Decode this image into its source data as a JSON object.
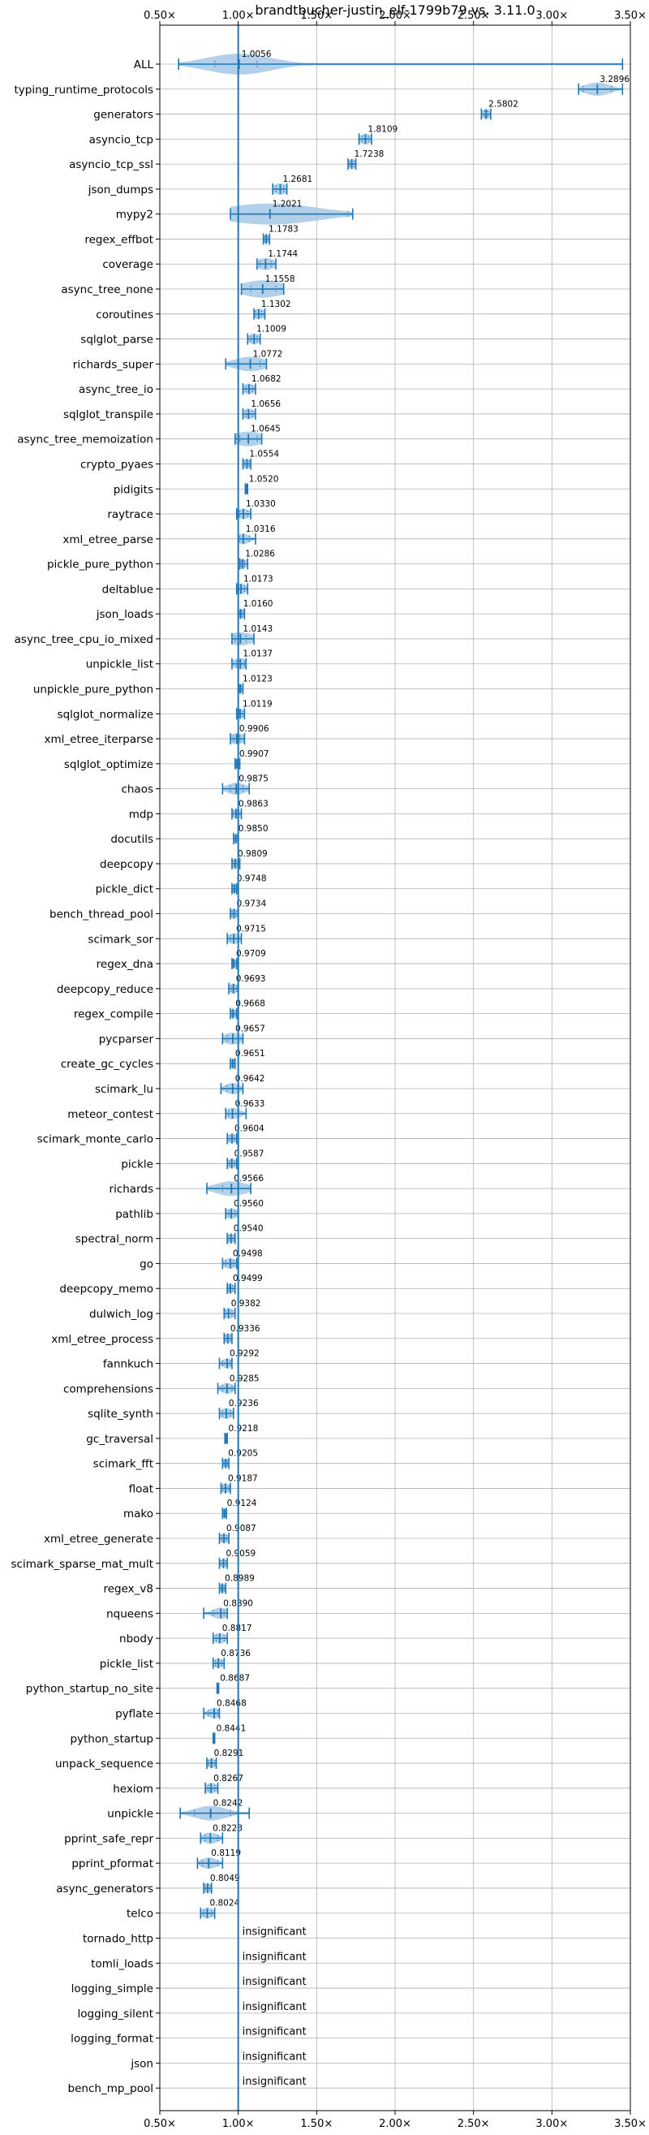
{
  "chart_data": {
    "type": "violin",
    "title": "brandtbucher-justin_elf-1799b79 vs. 3.11.0",
    "xlabel": "",
    "ylabel": "",
    "xlim": [
      0.5,
      3.5
    ],
    "x_ticks": [
      0.5,
      1.0,
      1.5,
      2.0,
      2.5,
      3.0,
      3.5
    ],
    "x_tick_labels": [
      "0.50x",
      "1.00x",
      "1.50x",
      "2.00x",
      "2.50x",
      "3.00x",
      "3.50x"
    ],
    "reference_line": 1.0,
    "grid": true,
    "colors": {
      "accent": "#1f77b4",
      "violin": "#a6c8e6",
      "grid": "#b0b0b0"
    },
    "benchmarks": [
      {
        "name": "ALL",
        "median_label": "1.0056",
        "median": 1.0056,
        "min": 0.62,
        "max": 3.45,
        "q1": 0.85,
        "q3": 1.12,
        "spread": 0.2
      },
      {
        "name": "typing_runtime_protocols",
        "median_label": "3.2896",
        "median": 3.2896,
        "min": 3.17,
        "max": 3.45,
        "q1": 3.2,
        "q3": 3.38,
        "spread": 0.08
      },
      {
        "name": "generators",
        "median_label": "2.5802",
        "median": 2.5802,
        "min": 2.55,
        "max": 2.61,
        "q1": 2.57,
        "q3": 2.59,
        "spread": 0.03
      },
      {
        "name": "asyncio_tcp",
        "median_label": "1.8109",
        "median": 1.8109,
        "min": 1.77,
        "max": 1.85,
        "q1": 1.79,
        "q3": 1.83,
        "spread": 0.04
      },
      {
        "name": "asyncio_tcp_ssl",
        "median_label": "1.7238",
        "median": 1.7238,
        "min": 1.7,
        "max": 1.75,
        "q1": 1.71,
        "q3": 1.74,
        "spread": 0.03
      },
      {
        "name": "json_dumps",
        "median_label": "1.2681",
        "median": 1.2681,
        "min": 1.22,
        "max": 1.31,
        "q1": 1.24,
        "q3": 1.29,
        "spread": 0.05
      },
      {
        "name": "mypy2",
        "median_label": "1.2021",
        "median": 1.2021,
        "min": 0.95,
        "max": 1.73,
        "q1": 1.0,
        "q3": 1.7,
        "spread": 0.3
      },
      {
        "name": "regex_effbot",
        "median_label": "1.1783",
        "median": 1.1783,
        "min": 1.16,
        "max": 1.2,
        "q1": 1.17,
        "q3": 1.19,
        "spread": 0.02
      },
      {
        "name": "coverage",
        "median_label": "1.1744",
        "median": 1.1744,
        "min": 1.12,
        "max": 1.24,
        "q1": 1.14,
        "q3": 1.21,
        "spread": 0.06
      },
      {
        "name": "async_tree_none",
        "median_label": "1.1558",
        "median": 1.1558,
        "min": 1.02,
        "max": 1.29,
        "q1": 1.08,
        "q3": 1.24,
        "spread": 0.14
      },
      {
        "name": "coroutines",
        "median_label": "1.1302",
        "median": 1.1302,
        "min": 1.1,
        "max": 1.17,
        "q1": 1.11,
        "q3": 1.15,
        "spread": 0.04
      },
      {
        "name": "sqlglot_parse",
        "median_label": "1.1009",
        "median": 1.1009,
        "min": 1.06,
        "max": 1.14,
        "q1": 1.08,
        "q3": 1.12,
        "spread": 0.04
      },
      {
        "name": "richards_super",
        "median_label": "1.0772",
        "median": 1.0772,
        "min": 0.92,
        "max": 1.18,
        "q1": 1.0,
        "q3": 1.14,
        "spread": 0.1
      },
      {
        "name": "async_tree_io",
        "median_label": "1.0682",
        "median": 1.0682,
        "min": 1.03,
        "max": 1.11,
        "q1": 1.05,
        "q3": 1.09,
        "spread": 0.04
      },
      {
        "name": "sqlglot_transpile",
        "median_label": "1.0656",
        "median": 1.0656,
        "min": 1.03,
        "max": 1.11,
        "q1": 1.05,
        "q3": 1.09,
        "spread": 0.04
      },
      {
        "name": "async_tree_memoization",
        "median_label": "1.0645",
        "median": 1.0645,
        "min": 0.98,
        "max": 1.15,
        "q1": 1.01,
        "q3": 1.12,
        "spread": 0.1
      },
      {
        "name": "crypto_pyaes",
        "median_label": "1.0554",
        "median": 1.0554,
        "min": 1.03,
        "max": 1.08,
        "q1": 1.04,
        "q3": 1.07,
        "spread": 0.03
      },
      {
        "name": "pidigits",
        "median_label": "1.0520",
        "median": 1.052,
        "min": 1.045,
        "max": 1.06,
        "q1": 1.05,
        "q3": 1.055,
        "spread": 0.008
      },
      {
        "name": "raytrace",
        "median_label": "1.0330",
        "median": 1.033,
        "min": 0.99,
        "max": 1.08,
        "q1": 1.01,
        "q3": 1.06,
        "spread": 0.04
      },
      {
        "name": "xml_etree_parse",
        "median_label": "1.0316",
        "median": 1.0316,
        "min": 1.0,
        "max": 1.11,
        "q1": 1.01,
        "q3": 1.07,
        "spread": 0.04
      },
      {
        "name": "pickle_pure_python",
        "median_label": "1.0286",
        "median": 1.0286,
        "min": 1.01,
        "max": 1.06,
        "q1": 1.02,
        "q3": 1.04,
        "spread": 0.03
      },
      {
        "name": "deltablue",
        "median_label": "1.0173",
        "median": 1.0173,
        "min": 0.99,
        "max": 1.06,
        "q1": 1.0,
        "q3": 1.04,
        "spread": 0.04
      },
      {
        "name": "json_loads",
        "median_label": "1.0160",
        "median": 1.016,
        "min": 1.0,
        "max": 1.04,
        "q1": 1.01,
        "q3": 1.03,
        "spread": 0.03
      },
      {
        "name": "async_tree_cpu_io_mixed",
        "median_label": "1.0143",
        "median": 1.0143,
        "min": 0.96,
        "max": 1.1,
        "q1": 0.98,
        "q3": 1.05,
        "spread": 0.08
      },
      {
        "name": "unpickle_list",
        "median_label": "1.0137",
        "median": 1.0137,
        "min": 0.96,
        "max": 1.05,
        "q1": 0.99,
        "q3": 1.04,
        "spread": 0.05
      },
      {
        "name": "unpickle_pure_python",
        "median_label": "1.0123",
        "median": 1.0123,
        "min": 1.0,
        "max": 1.03,
        "q1": 1.005,
        "q3": 1.02,
        "spread": 0.02
      },
      {
        "name": "sqlglot_normalize",
        "median_label": "1.0119",
        "median": 1.0119,
        "min": 0.99,
        "max": 1.04,
        "q1": 1.0,
        "q3": 1.03,
        "spread": 0.03
      },
      {
        "name": "xml_etree_iterparse",
        "median_label": "0.9906",
        "median": 0.9906,
        "min": 0.95,
        "max": 1.04,
        "q1": 0.97,
        "q3": 1.01,
        "spread": 0.05
      },
      {
        "name": "sqlglot_optimize",
        "median_label": "0.9907",
        "median": 0.9907,
        "min": 0.98,
        "max": 1.01,
        "q1": 0.985,
        "q3": 1.0,
        "spread": 0.02
      },
      {
        "name": "chaos",
        "median_label": "0.9875",
        "median": 0.9875,
        "min": 0.9,
        "max": 1.07,
        "q1": 0.95,
        "q3": 1.03,
        "spread": 0.06
      },
      {
        "name": "mdp",
        "median_label": "0.9863",
        "median": 0.9863,
        "min": 0.96,
        "max": 1.02,
        "q1": 0.97,
        "q3": 1.0,
        "spread": 0.03
      },
      {
        "name": "docutils",
        "median_label": "0.9850",
        "median": 0.985,
        "min": 0.97,
        "max": 1.0,
        "q1": 0.975,
        "q3": 0.995,
        "spread": 0.02
      },
      {
        "name": "deepcopy",
        "median_label": "0.9809",
        "median": 0.9809,
        "min": 0.96,
        "max": 1.01,
        "q1": 0.97,
        "q3": 0.995,
        "spread": 0.03
      },
      {
        "name": "pickle_dict",
        "median_label": "0.9748",
        "median": 0.9748,
        "min": 0.96,
        "max": 0.99,
        "q1": 0.965,
        "q3": 0.985,
        "spread": 0.02
      },
      {
        "name": "bench_thread_pool",
        "median_label": "0.9734",
        "median": 0.9734,
        "min": 0.95,
        "max": 1.0,
        "q1": 0.96,
        "q3": 0.99,
        "spread": 0.03
      },
      {
        "name": "scimark_sor",
        "median_label": "0.9715",
        "median": 0.9715,
        "min": 0.93,
        "max": 1.02,
        "q1": 0.95,
        "q3": 1.0,
        "spread": 0.04
      },
      {
        "name": "regex_dna",
        "median_label": "0.9709",
        "median": 0.9709,
        "min": 0.96,
        "max": 0.99,
        "q1": 0.965,
        "q3": 0.98,
        "spread": 0.02
      },
      {
        "name": "deepcopy_reduce",
        "median_label": "0.9693",
        "median": 0.9693,
        "min": 0.94,
        "max": 1.0,
        "q1": 0.955,
        "q3": 0.99,
        "spread": 0.03
      },
      {
        "name": "regex_compile",
        "median_label": "0.9668",
        "median": 0.9668,
        "min": 0.95,
        "max": 0.99,
        "q1": 0.96,
        "q3": 0.98,
        "spread": 0.02
      },
      {
        "name": "pycparser",
        "median_label": "0.9657",
        "median": 0.9657,
        "min": 0.9,
        "max": 1.03,
        "q1": 0.93,
        "q3": 1.0,
        "spread": 0.06
      },
      {
        "name": "create_gc_cycles",
        "median_label": "0.9651",
        "median": 0.9651,
        "min": 0.95,
        "max": 0.98,
        "q1": 0.955,
        "q3": 0.975,
        "spread": 0.02
      },
      {
        "name": "scimark_lu",
        "median_label": "0.9642",
        "median": 0.9642,
        "min": 0.89,
        "max": 1.03,
        "q1": 0.93,
        "q3": 1.0,
        "spread": 0.05
      },
      {
        "name": "meteor_contest",
        "median_label": "0.9633",
        "median": 0.9633,
        "min": 0.92,
        "max": 1.05,
        "q1": 0.94,
        "q3": 1.0,
        "spread": 0.05
      },
      {
        "name": "scimark_monte_carlo",
        "median_label": "0.9604",
        "median": 0.9604,
        "min": 0.93,
        "max": 0.99,
        "q1": 0.945,
        "q3": 0.975,
        "spread": 0.03
      },
      {
        "name": "pickle",
        "median_label": "0.9587",
        "median": 0.9587,
        "min": 0.93,
        "max": 0.99,
        "q1": 0.945,
        "q3": 0.975,
        "spread": 0.03
      },
      {
        "name": "richards",
        "median_label": "0.9566",
        "median": 0.9566,
        "min": 0.8,
        "max": 1.08,
        "q1": 0.9,
        "q3": 1.0,
        "spread": 0.1
      },
      {
        "name": "pathlib",
        "median_label": "0.9560",
        "median": 0.956,
        "min": 0.92,
        "max": 1.0,
        "q1": 0.94,
        "q3": 0.98,
        "spread": 0.04
      },
      {
        "name": "spectral_norm",
        "median_label": "0.9540",
        "median": 0.954,
        "min": 0.93,
        "max": 0.98,
        "q1": 0.94,
        "q3": 0.97,
        "spread": 0.03
      },
      {
        "name": "go",
        "median_label": "0.9498",
        "median": 0.9498,
        "min": 0.9,
        "max": 0.99,
        "q1": 0.92,
        "q3": 0.97,
        "spread": 0.04
      },
      {
        "name": "deepcopy_memo",
        "median_label": "0.9499",
        "median": 0.9499,
        "min": 0.93,
        "max": 0.98,
        "q1": 0.94,
        "q3": 0.965,
        "spread": 0.03
      },
      {
        "name": "dulwich_log",
        "median_label": "0.9382",
        "median": 0.9382,
        "min": 0.91,
        "max": 0.98,
        "q1": 0.92,
        "q3": 0.96,
        "spread": 0.04
      },
      {
        "name": "xml_etree_process",
        "median_label": "0.9336",
        "median": 0.9336,
        "min": 0.91,
        "max": 0.96,
        "q1": 0.92,
        "q3": 0.95,
        "spread": 0.03
      },
      {
        "name": "fannkuch",
        "median_label": "0.9292",
        "median": 0.9292,
        "min": 0.88,
        "max": 0.96,
        "q1": 0.9,
        "q3": 0.95,
        "spread": 0.03
      },
      {
        "name": "comprehensions",
        "median_label": "0.9285",
        "median": 0.9285,
        "min": 0.87,
        "max": 0.98,
        "q1": 0.9,
        "q3": 0.96,
        "spread": 0.04
      },
      {
        "name": "sqlite_synth",
        "median_label": "0.9236",
        "median": 0.9236,
        "min": 0.88,
        "max": 0.97,
        "q1": 0.9,
        "q3": 0.95,
        "spread": 0.04
      },
      {
        "name": "gc_traversal",
        "median_label": "0.9218",
        "median": 0.9218,
        "min": 0.915,
        "max": 0.93,
        "q1": 0.918,
        "q3": 0.926,
        "spread": 0.008
      },
      {
        "name": "scimark_fft",
        "median_label": "0.9205",
        "median": 0.9205,
        "min": 0.9,
        "max": 0.94,
        "q1": 0.91,
        "q3": 0.93,
        "spread": 0.02
      },
      {
        "name": "float",
        "median_label": "0.9187",
        "median": 0.9187,
        "min": 0.89,
        "max": 0.95,
        "q1": 0.9,
        "q3": 0.94,
        "spread": 0.03
      },
      {
        "name": "mako",
        "median_label": "0.9124",
        "median": 0.9124,
        "min": 0.9,
        "max": 0.925,
        "q1": 0.905,
        "q3": 0.92,
        "spread": 0.015
      },
      {
        "name": "xml_etree_generate",
        "median_label": "0.9087",
        "median": 0.9087,
        "min": 0.88,
        "max": 0.94,
        "q1": 0.895,
        "q3": 0.925,
        "spread": 0.03
      },
      {
        "name": "scimark_sparse_mat_mult",
        "median_label": "0.9059",
        "median": 0.9059,
        "min": 0.88,
        "max": 0.93,
        "q1": 0.89,
        "q3": 0.92,
        "spread": 0.02
      },
      {
        "name": "regex_v8",
        "median_label": "0.8989",
        "median": 0.8989,
        "min": 0.88,
        "max": 0.92,
        "q1": 0.89,
        "q3": 0.91,
        "spread": 0.02
      },
      {
        "name": "nqueens",
        "median_label": "0.8890",
        "median": 0.889,
        "min": 0.78,
        "max": 0.93,
        "q1": 0.84,
        "q3": 0.91,
        "spread": 0.05
      },
      {
        "name": "nbody",
        "median_label": "0.8817",
        "median": 0.8817,
        "min": 0.84,
        "max": 0.93,
        "q1": 0.86,
        "q3": 0.91,
        "spread": 0.04
      },
      {
        "name": "pickle_list",
        "median_label": "0.8736",
        "median": 0.8736,
        "min": 0.84,
        "max": 0.91,
        "q1": 0.855,
        "q3": 0.895,
        "spread": 0.03
      },
      {
        "name": "python_startup_no_site",
        "median_label": "0.8687",
        "median": 0.8687,
        "min": 0.865,
        "max": 0.875,
        "q1": 0.867,
        "q3": 0.872,
        "spread": 0.006
      },
      {
        "name": "pyflate",
        "median_label": "0.8468",
        "median": 0.8468,
        "min": 0.78,
        "max": 0.88,
        "q1": 0.81,
        "q3": 0.87,
        "spread": 0.04
      },
      {
        "name": "python_startup",
        "median_label": "0.8441",
        "median": 0.8441,
        "min": 0.84,
        "max": 0.85,
        "q1": 0.842,
        "q3": 0.847,
        "spread": 0.005
      },
      {
        "name": "unpack_sequence",
        "median_label": "0.8291",
        "median": 0.8291,
        "min": 0.8,
        "max": 0.86,
        "q1": 0.81,
        "q3": 0.85,
        "spread": 0.03
      },
      {
        "name": "hexiom",
        "median_label": "0.8267",
        "median": 0.8267,
        "min": 0.79,
        "max": 0.87,
        "q1": 0.81,
        "q3": 0.85,
        "spread": 0.04
      },
      {
        "name": "unpickle",
        "median_label": "0.8242",
        "median": 0.8242,
        "min": 0.63,
        "max": 1.07,
        "q1": 0.72,
        "q3": 0.95,
        "spread": 0.1
      },
      {
        "name": "pprint_safe_repr",
        "median_label": "0.8223",
        "median": 0.8223,
        "min": 0.76,
        "max": 0.9,
        "q1": 0.79,
        "q3": 0.87,
        "spread": 0.05
      },
      {
        "name": "pprint_pformat",
        "median_label": "0.8119",
        "median": 0.8119,
        "min": 0.74,
        "max": 0.9,
        "q1": 0.77,
        "q3": 0.87,
        "spread": 0.05
      },
      {
        "name": "async_generators",
        "median_label": "0.8049",
        "median": 0.8049,
        "min": 0.78,
        "max": 0.83,
        "q1": 0.79,
        "q3": 0.82,
        "spread": 0.03
      },
      {
        "name": "telco",
        "median_label": "0.8024",
        "median": 0.8024,
        "min": 0.76,
        "max": 0.85,
        "q1": 0.78,
        "q3": 0.83,
        "spread": 0.04
      },
      {
        "name": "tornado_http",
        "median_label": "insignificant",
        "median": null
      },
      {
        "name": "tomli_loads",
        "median_label": "insignificant",
        "median": null
      },
      {
        "name": "logging_simple",
        "median_label": "insignificant",
        "median": null
      },
      {
        "name": "logging_silent",
        "median_label": "insignificant",
        "median": null
      },
      {
        "name": "logging_format",
        "median_label": "insignificant",
        "median": null
      },
      {
        "name": "json",
        "median_label": "insignificant",
        "median": null
      },
      {
        "name": "bench_mp_pool",
        "median_label": "insignificant",
        "median": null
      }
    ]
  }
}
